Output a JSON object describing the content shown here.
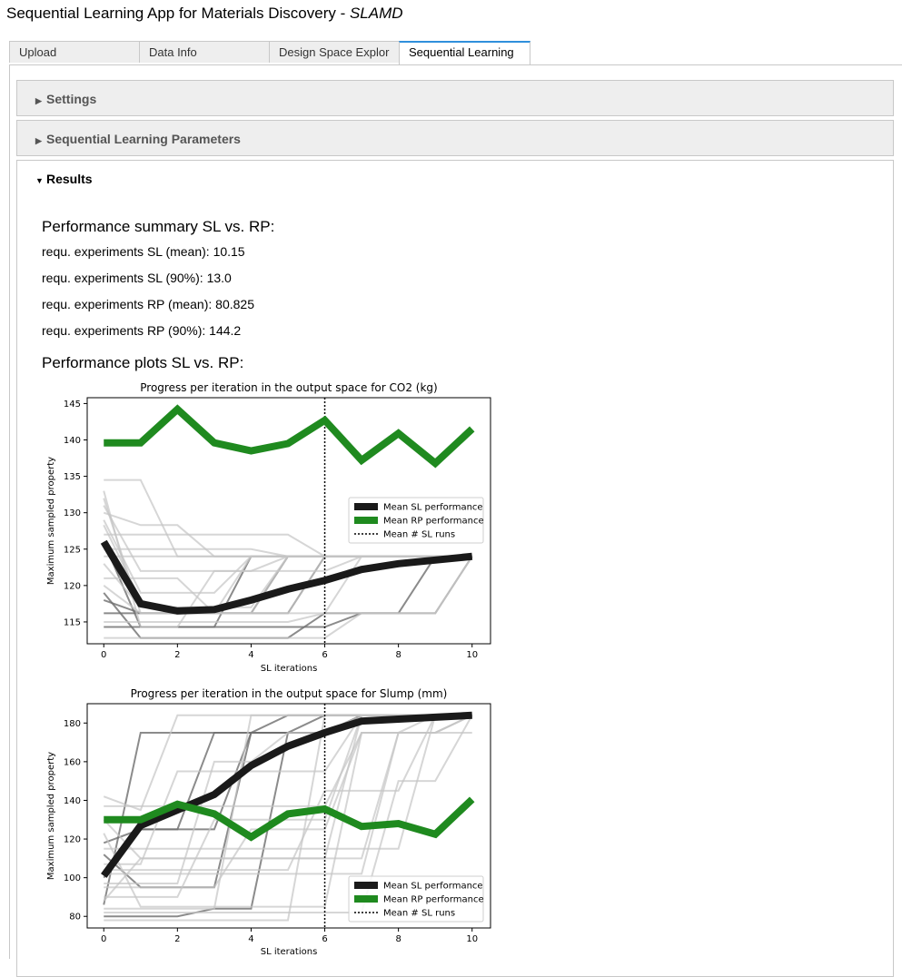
{
  "app": {
    "title_main": "Sequential Learning App for Materials Discovery - ",
    "title_em": "SLAMD"
  },
  "tabs": [
    {
      "label": "Upload",
      "active": false
    },
    {
      "label": "Data Info",
      "active": false
    },
    {
      "label": "Design Space Explor",
      "active": false
    },
    {
      "label": "Sequential Learning",
      "active": true
    }
  ],
  "accordions": {
    "settings": "Settings",
    "sl_params": "Sequential Learning Parameters",
    "results": "Results"
  },
  "summary": {
    "heading": "Performance summary SL vs. RP:",
    "lines": [
      "requ. experiments SL (mean): 10.15",
      "requ. experiments SL (90%): 13.0",
      "requ. experiments RP (mean): 80.825",
      "requ. experiments RP (90%): 144.2"
    ]
  },
  "plots_heading": "Performance plots SL vs. RP:",
  "colors": {
    "sl": "#1a1a1a",
    "rp": "#1f8a1f",
    "tab_accent": "#2f8fdc"
  },
  "chart_data": [
    {
      "type": "line",
      "title": "Progress per iteration in the output space for CO2 (kg)",
      "xlabel": "SL iterations",
      "ylabel": "Maximum sampled property",
      "xlim": [
        -0.45,
        10.5
      ],
      "ylim": [
        112,
        145.8
      ],
      "xticks": [
        0,
        2,
        4,
        6,
        8,
        10
      ],
      "yticks": [
        115,
        120,
        125,
        130,
        135,
        140,
        145
      ],
      "legend_position": "center-right",
      "vline": {
        "x": 6,
        "name": "Mean # SL runs"
      },
      "series": [
        {
          "name": "Mean SL performance",
          "role": "sl",
          "x": [
            0,
            1,
            2,
            3,
            4,
            5,
            6,
            7,
            8,
            9,
            10
          ],
          "y": [
            126.0,
            117.5,
            116.5,
            116.7,
            118.0,
            119.5,
            120.7,
            122.2,
            123.0,
            123.5,
            124.0
          ]
        },
        {
          "name": "Mean RP performance",
          "role": "rp",
          "x": [
            0,
            1,
            2,
            3,
            4,
            5,
            6,
            7,
            8,
            9,
            10
          ],
          "y": [
            139.6,
            139.6,
            144.2,
            139.6,
            138.5,
            139.5,
            142.7,
            137.2,
            140.9,
            136.8,
            141.5
          ]
        }
      ],
      "runs": [
        [
          114.3,
          114.3,
          114.3,
          114.3,
          124.0,
          124.0,
          124.0,
          124.0,
          124.0,
          124.0,
          124.0
        ],
        [
          116.2,
          116.2,
          116.2,
          116.2,
          116.2,
          116.2,
          124.0,
          124.0,
          124.0,
          124.0,
          124.0
        ],
        [
          118.0,
          116.2,
          116.2,
          116.2,
          116.2,
          124.0,
          124.0,
          124.0,
          124.0,
          124.0,
          124.0
        ],
        [
          119.0,
          112.8,
          112.8,
          112.8,
          112.8,
          112.8,
          116.2,
          116.2,
          116.2,
          124.0,
          124.0
        ],
        [
          126.0,
          114.3,
          114.3,
          114.3,
          114.3,
          114.3,
          114.3,
          116.2,
          116.2,
          116.2,
          124.0
        ],
        [
          134.5,
          134.5,
          124.0,
          124.0,
          124.0,
          124.0,
          124.0,
          124.0,
          124.0,
          124.0,
          124.0
        ],
        [
          130.0,
          128.3,
          128.3,
          124.0,
          124.0,
          124.0,
          124.0,
          124.0,
          124.0,
          124.0,
          124.0
        ],
        [
          128.3,
          118.0,
          116.2,
          116.2,
          116.2,
          124.0,
          124.0,
          124.0,
          124.0,
          124.0,
          124.0
        ],
        [
          125.0,
          125.0,
          125.0,
          125.0,
          125.0,
          124.0,
          124.0,
          124.0,
          124.0,
          124.0,
          124.0
        ],
        [
          132.0,
          116.2,
          116.2,
          116.2,
          124.0,
          124.0,
          124.0,
          124.0,
          124.0,
          124.0,
          124.0
        ],
        [
          121.0,
          121.0,
          121.0,
          116.2,
          116.2,
          116.2,
          124.0,
          124.0,
          124.0,
          124.0,
          124.0
        ],
        [
          127.0,
          127.0,
          127.0,
          127.0,
          127.0,
          127.0,
          124.0,
          124.0,
          124.0,
          124.0,
          124.0
        ],
        [
          112.8,
          112.8,
          112.8,
          112.8,
          112.8,
          112.8,
          112.8,
          116.2,
          116.2,
          116.2,
          124.0
        ],
        [
          123.0,
          117.0,
          117.0,
          117.0,
          117.0,
          124.0,
          124.0,
          124.0,
          124.0,
          124.0,
          124.0
        ],
        [
          131.0,
          122.0,
          122.0,
          122.0,
          122.0,
          122.0,
          122.0,
          124.0,
          124.0,
          124.0,
          124.0
        ],
        [
          115.0,
          115.0,
          115.0,
          115.0,
          115.0,
          115.0,
          116.2,
          124.0,
          124.0,
          124.0,
          124.0
        ],
        [
          120.0,
          116.2,
          116.2,
          116.2,
          116.2,
          116.2,
          116.2,
          116.2,
          116.2,
          116.2,
          124.0
        ],
        [
          133.0,
          114.3,
          114.3,
          122.0,
          122.0,
          124.0,
          124.0,
          124.0,
          124.0,
          124.0,
          124.0
        ],
        [
          129.0,
          119.0,
          119.0,
          119.0,
          124.0,
          124.0,
          124.0,
          124.0,
          124.0,
          124.0,
          124.0
        ],
        [
          124.0,
          124.0,
          124.0,
          124.0,
          124.0,
          124.0,
          124.0,
          124.0,
          124.0,
          124.0,
          124.0
        ]
      ],
      "runs_dark": [
        0,
        1,
        2,
        3,
        4
      ]
    },
    {
      "type": "line",
      "title": "Progress per iteration in the output space for Slump (mm)",
      "xlabel": "SL iterations",
      "ylabel": "Maximum sampled property",
      "xlim": [
        -0.45,
        10.5
      ],
      "ylim": [
        74,
        190
      ],
      "xticks": [
        0,
        2,
        4,
        6,
        8,
        10
      ],
      "yticks": [
        80,
        100,
        120,
        140,
        160,
        180
      ],
      "legend_position": "lower-right",
      "vline": {
        "x": 6,
        "name": "Mean # SL runs"
      },
      "series": [
        {
          "name": "Mean SL performance",
          "role": "sl",
          "x": [
            0,
            1,
            2,
            3,
            4,
            5,
            6,
            7,
            8,
            9,
            10
          ],
          "y": [
            101,
            127,
            135,
            143,
            158,
            168,
            175,
            181,
            182,
            183,
            184
          ]
        },
        {
          "name": "Mean RP performance",
          "role": "rp",
          "x": [
            0,
            1,
            2,
            3,
            4,
            5,
            6,
            7,
            8,
            9,
            10
          ],
          "y": [
            130,
            130,
            138,
            133,
            121,
            133,
            135.5,
            126.5,
            128,
            122.5,
            140.5
          ]
        }
      ],
      "runs": [
        [
          86,
          175,
          175,
          175,
          175,
          175,
          175,
          184,
          184,
          184,
          184
        ],
        [
          100,
          125,
          125,
          175,
          175,
          175,
          175,
          184,
          184,
          184,
          184
        ],
        [
          112,
          95,
          95,
          95,
          175,
          184,
          184,
          184,
          184,
          184,
          184
        ],
        [
          80,
          80,
          80,
          84,
          84,
          175,
          175,
          184,
          184,
          184,
          184
        ],
        [
          118,
          125,
          125,
          125,
          175,
          175,
          184,
          184,
          184,
          184,
          184
        ],
        [
          84,
          84,
          84,
          84,
          184,
          184,
          184,
          184,
          184,
          184,
          184
        ],
        [
          142,
          135,
          184,
          184,
          184,
          184,
          184,
          184,
          184,
          184,
          184
        ],
        [
          130,
          110,
          110,
          110,
          110,
          110,
          110,
          184,
          184,
          184,
          184
        ],
        [
          95,
          95,
          95,
          95,
          125,
          125,
          125,
          175,
          175,
          175,
          184
        ],
        [
          107,
          107,
          155,
          155,
          155,
          155,
          155,
          184,
          184,
          184,
          184
        ],
        [
          123,
          85,
          85,
          85,
          85,
          85,
          85,
          175,
          175,
          184,
          184
        ],
        [
          90,
          90,
          90,
          130,
          130,
          130,
          130,
          184,
          184,
          184,
          184
        ],
        [
          78,
          78,
          78,
          78,
          78,
          78,
          184,
          184,
          184,
          184,
          184
        ],
        [
          115,
          115,
          115,
          115,
          115,
          115,
          115,
          115,
          115,
          184,
          184
        ],
        [
          137,
          137,
          137,
          137,
          137,
          137,
          137,
          175,
          175,
          175,
          184
        ],
        [
          102,
          102,
          102,
          102,
          102,
          102,
          102,
          102,
          175,
          175,
          184
        ],
        [
          88,
          110,
          110,
          110,
          110,
          110,
          110,
          110,
          175,
          175,
          175
        ],
        [
          97,
          97,
          97,
          160,
          160,
          175,
          175,
          184,
          184,
          184,
          184
        ],
        [
          104,
          104,
          104,
          104,
          104,
          104,
          145,
          145,
          145,
          184,
          184
        ],
        [
          82,
          82,
          82,
          82,
          82,
          82,
          82,
          82,
          150,
          150,
          184
        ]
      ],
      "runs_dark": [
        0,
        1,
        2,
        3,
        4
      ]
    }
  ]
}
